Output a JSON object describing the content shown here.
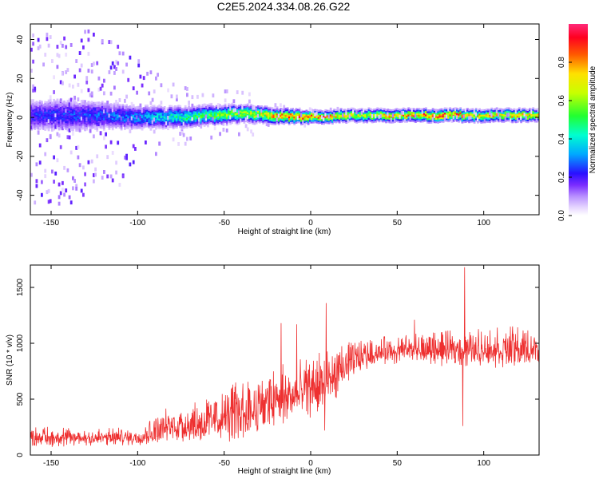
{
  "page_title": "C2E5.2024.334.08.26.G22",
  "chart_data": [
    {
      "type": "heatmap",
      "title": "C2E5.2024.334.08.26.G22",
      "xlabel": "Height of straight line (km)",
      "ylabel": "Frequency (Hz)",
      "xlim": [
        -162,
        132
      ],
      "ylim": [
        -50,
        48
      ],
      "x_ticks": [
        -150,
        -100,
        -50,
        0,
        50,
        100
      ],
      "y_ticks": [
        -40,
        -20,
        0,
        20,
        40
      ],
      "x_tick_labels": [
        "-150",
        "-100",
        "-50",
        "0",
        "50",
        "100"
      ],
      "y_tick_labels": [
        "-40",
        "-20",
        "0",
        "20",
        "40"
      ],
      "colorbar": {
        "label": "Normalized spectral amplitude",
        "range": [
          0,
          1
        ],
        "ticks": [
          0.0,
          0.2,
          0.4,
          0.6,
          0.8
        ],
        "tick_labels": [
          "0.0",
          "0.2",
          "0.4",
          "0.6",
          "0.8"
        ],
        "colormap": "rainbow-with-white-low"
      },
      "ridge": [
        {
          "x": -160,
          "center_hz": 1,
          "halfwidth_hz": 7,
          "peak": 0.22,
          "scatter_hz": 45
        },
        {
          "x": -140,
          "center_hz": 1,
          "halfwidth_hz": 7,
          "peak": 0.24,
          "scatter_hz": 45
        },
        {
          "x": -120,
          "center_hz": 1,
          "halfwidth_hz": 6,
          "peak": 0.26,
          "scatter_hz": 42
        },
        {
          "x": -100,
          "center_hz": 0,
          "halfwidth_hz": 5,
          "peak": 0.3,
          "scatter_hz": 30
        },
        {
          "x": -80,
          "center_hz": 0,
          "halfwidth_hz": 4.5,
          "peak": 0.4,
          "scatter_hz": 18
        },
        {
          "x": -60,
          "center_hz": 1,
          "halfwidth_hz": 4,
          "peak": 0.5,
          "scatter_hz": 14
        },
        {
          "x": -40,
          "center_hz": 2,
          "halfwidth_hz": 3.5,
          "peak": 0.58,
          "scatter_hz": 12
        },
        {
          "x": -20,
          "center_hz": 1,
          "halfwidth_hz": 3,
          "peak": 0.75,
          "scatter_hz": 6
        },
        {
          "x": 0,
          "center_hz": 0,
          "halfwidth_hz": 2.5,
          "peak": 0.85,
          "scatter_hz": 4
        },
        {
          "x": 25,
          "center_hz": 1,
          "halfwidth_hz": 2.5,
          "peak": 0.62,
          "scatter_hz": 3
        },
        {
          "x": 50,
          "center_hz": 1,
          "halfwidth_hz": 2.5,
          "peak": 0.72,
          "scatter_hz": 3
        },
        {
          "x": 75,
          "center_hz": 1,
          "halfwidth_hz": 2.5,
          "peak": 0.82,
          "scatter_hz": 3
        },
        {
          "x": 100,
          "center_hz": 1,
          "halfwidth_hz": 2.5,
          "peak": 0.7,
          "scatter_hz": 3
        },
        {
          "x": 132,
          "center_hz": 1,
          "halfwidth_hz": 2.5,
          "peak": 0.68,
          "scatter_hz": 3
        }
      ]
    },
    {
      "type": "line",
      "xlabel": "Height of straight line (km)",
      "ylabel": "SNR (10 * v/v)",
      "xlim": [
        -162,
        132
      ],
      "ylim": [
        0,
        1700
      ],
      "x_ticks": [
        -150,
        -100,
        -50,
        0,
        50,
        100
      ],
      "y_ticks": [
        0,
        500,
        1000,
        1500
      ],
      "x_tick_labels": [
        "-150",
        "-100",
        "-50",
        "0",
        "50",
        "100"
      ],
      "y_tick_labels": [
        "0",
        "500",
        "1000",
        "1500"
      ],
      "color": "#ee3030",
      "envelope": [
        {
          "x": -162,
          "low": 70,
          "high": 260
        },
        {
          "x": -140,
          "low": 70,
          "high": 250
        },
        {
          "x": -120,
          "low": 80,
          "high": 240
        },
        {
          "x": -100,
          "low": 80,
          "high": 250
        },
        {
          "x": -92,
          "low": 90,
          "high": 340
        },
        {
          "x": -80,
          "low": 90,
          "high": 450
        },
        {
          "x": -60,
          "low": 100,
          "high": 520
        },
        {
          "x": -40,
          "low": 110,
          "high": 700
        },
        {
          "x": -20,
          "low": 200,
          "high": 800
        },
        {
          "x": 0,
          "low": 330,
          "high": 880
        },
        {
          "x": 10,
          "low": 380,
          "high": 950
        },
        {
          "x": 20,
          "low": 620,
          "high": 1000
        },
        {
          "x": 30,
          "low": 740,
          "high": 1050
        },
        {
          "x": 40,
          "low": 800,
          "high": 1060
        },
        {
          "x": 60,
          "low": 810,
          "high": 1100
        },
        {
          "x": 75,
          "low": 790,
          "high": 1110
        },
        {
          "x": 100,
          "low": 780,
          "high": 1130
        },
        {
          "x": 132,
          "low": 760,
          "high": 1170
        }
      ],
      "spikes": [
        {
          "x": -17,
          "value": 1180
        },
        {
          "x": -8,
          "value": 1170
        },
        {
          "x": 9,
          "value": 1360
        },
        {
          "x": 8,
          "value": 220
        },
        {
          "x": 60,
          "value": 1210
        },
        {
          "x": 89,
          "value": 1680
        },
        {
          "x": 88,
          "value": 260
        }
      ]
    }
  ]
}
